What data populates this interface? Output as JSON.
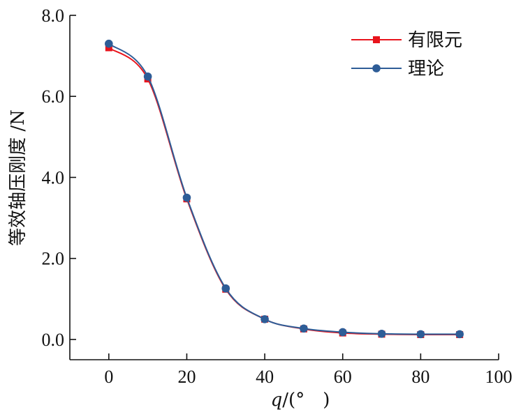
{
  "chart_data": {
    "type": "line",
    "xlabel_italic": "q",
    "xlabel_rest": "/(°　)",
    "ylabel": "等效轴压刚度 /N",
    "xlim": [
      -10,
      100
    ],
    "ylim": [
      -0.5,
      8.0
    ],
    "x_ticks": [
      0,
      20,
      40,
      60,
      80,
      100
    ],
    "x_tick_labels": [
      "0",
      "20",
      "40",
      "60",
      "80",
      "100"
    ],
    "y_ticks": [
      0.0,
      2.0,
      4.0,
      6.0,
      8.0
    ],
    "y_tick_labels": [
      "0.0",
      "2.0",
      "4.0",
      "6.0",
      "8.0"
    ],
    "grid": false,
    "legend_position": "top-right",
    "series": [
      {
        "name": "有限元",
        "color": "#e8141c",
        "marker": "square",
        "x": [
          0,
          10,
          20,
          30,
          40,
          50,
          60,
          70,
          80,
          90
        ],
        "values": [
          7.2,
          6.43,
          3.47,
          1.24,
          0.5,
          0.26,
          0.16,
          0.13,
          0.12,
          0.12
        ]
      },
      {
        "name": "理论",
        "color": "#2e5d97",
        "marker": "circle",
        "x": [
          0,
          10,
          20,
          30,
          40,
          50,
          60,
          70,
          80,
          90
        ],
        "values": [
          7.3,
          6.49,
          3.5,
          1.26,
          0.5,
          0.27,
          0.18,
          0.14,
          0.13,
          0.13
        ]
      }
    ]
  }
}
